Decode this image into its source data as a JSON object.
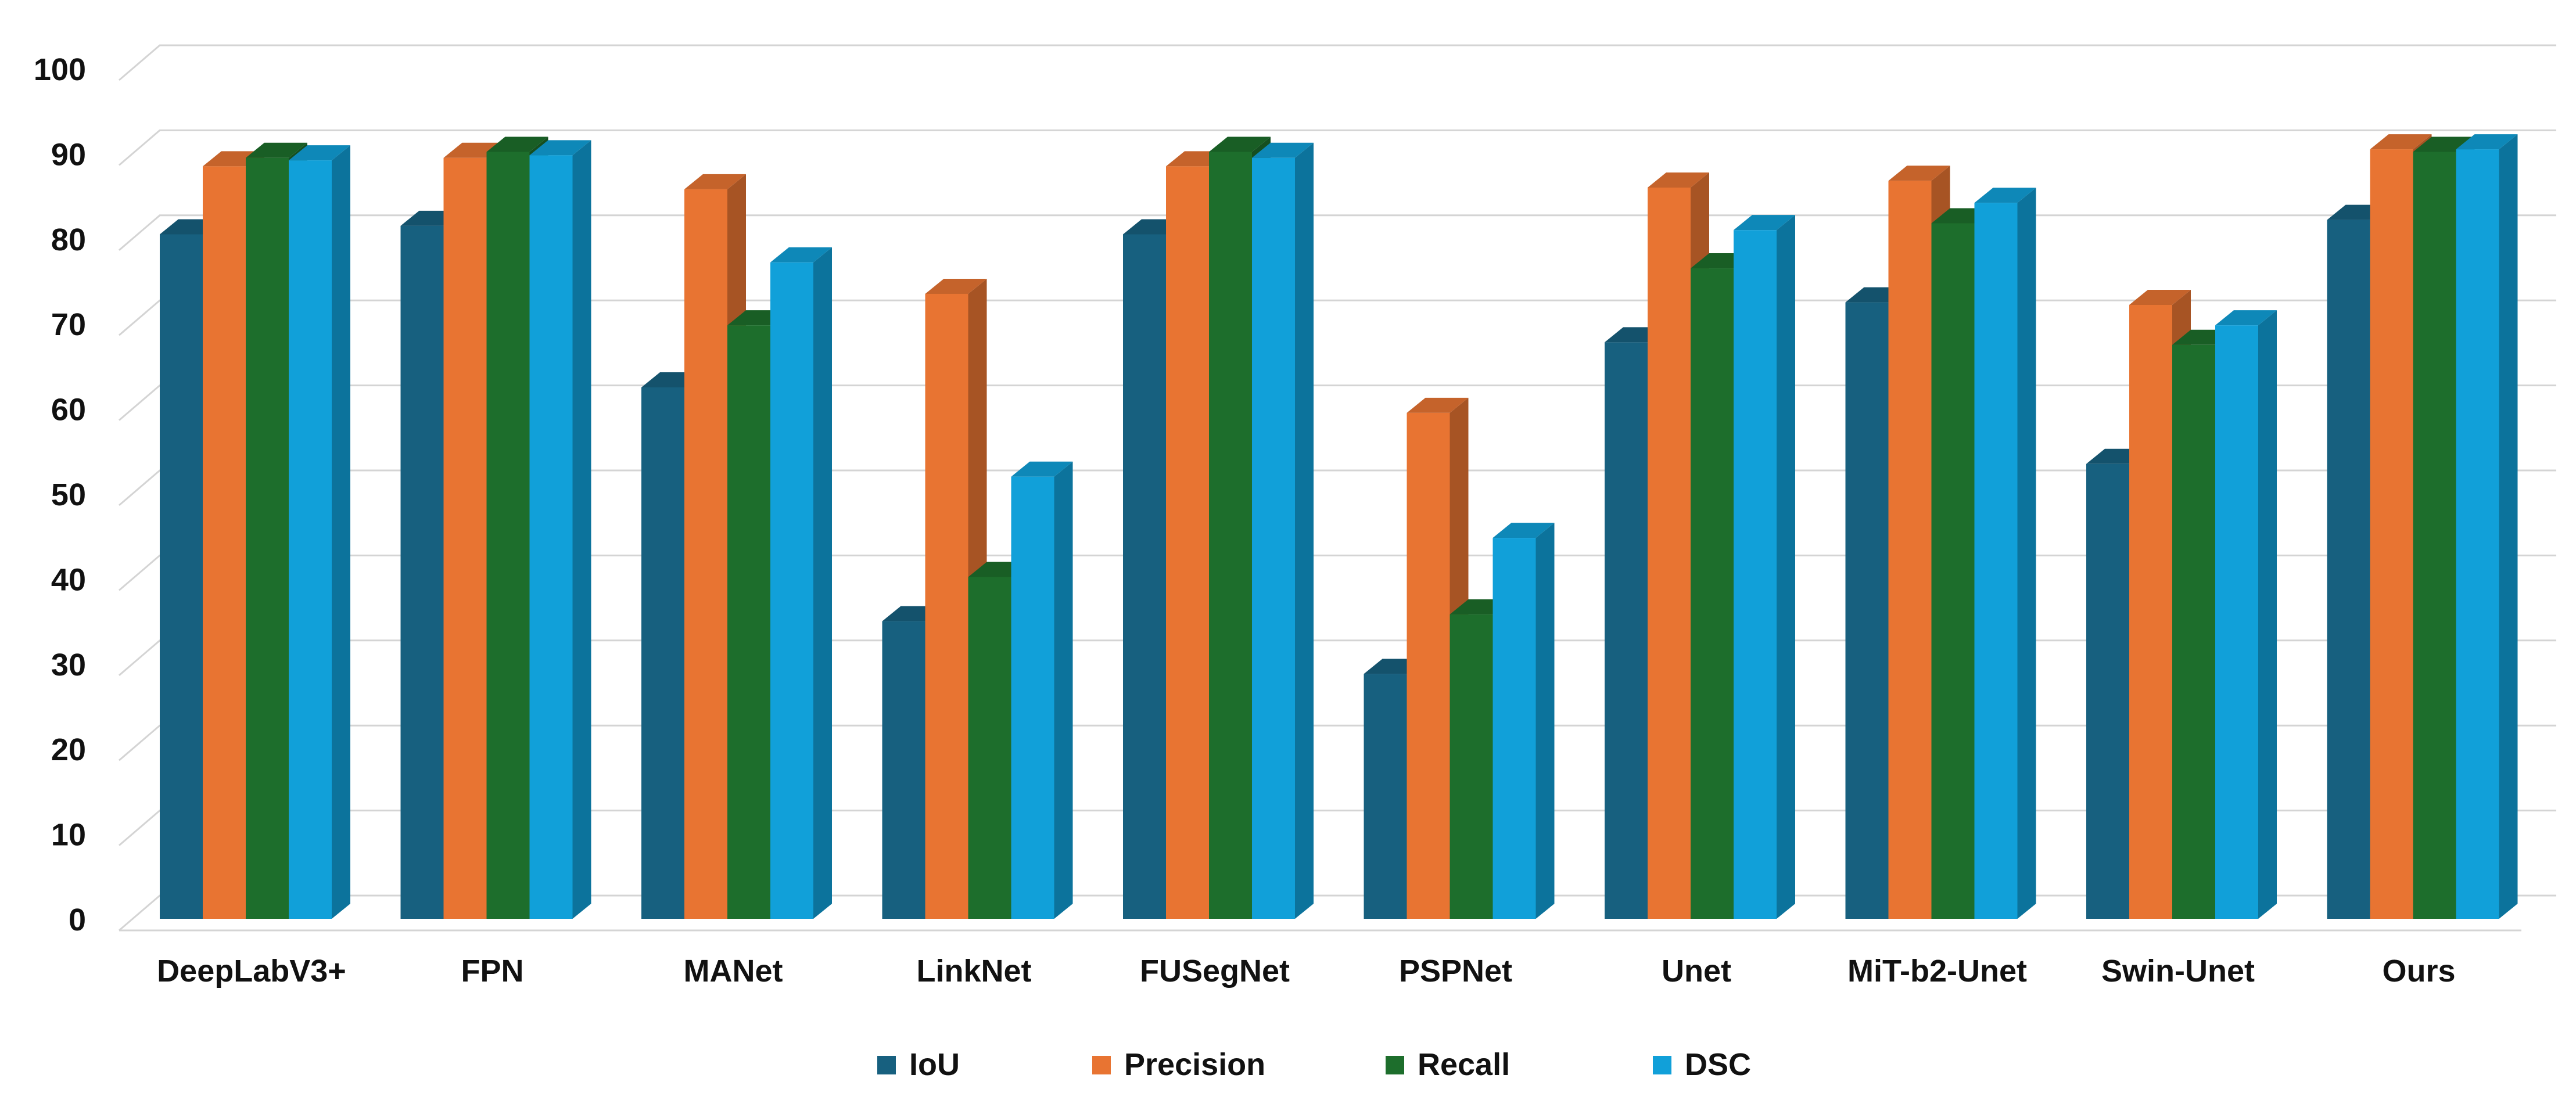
{
  "chart_data": {
    "type": "bar",
    "style": "3d-clustered-column",
    "title": "",
    "xlabel": "",
    "ylabel": "",
    "ylim": [
      0,
      100
    ],
    "yticks": [
      "0",
      "10",
      "20",
      "30",
      "40",
      "50",
      "60",
      "70",
      "80",
      "90",
      "100"
    ],
    "grid": true,
    "legend_position": "bottom",
    "categories": [
      "DeepLabV3+",
      "FPN",
      "MANet",
      "LinkNet",
      "FUSegNet",
      "PSPNet",
      "Unet",
      "MiT-b2-Unet",
      "Swin-Unet",
      "Ours"
    ],
    "series": [
      {
        "name": "IoU",
        "color": "#17607F",
        "values": [
          80.5,
          81.5,
          62.5,
          35,
          80.5,
          28.8,
          67.8,
          72.5,
          53.5,
          82.2
        ]
      },
      {
        "name": "Precision",
        "color": "#E87432",
        "values": [
          88.5,
          89.5,
          85.8,
          73.5,
          88.5,
          59.5,
          86,
          86.8,
          72.2,
          90.5
        ]
      },
      {
        "name": "Recall",
        "color": "#1D6E2C",
        "values": [
          89.5,
          90.2,
          69.8,
          40.2,
          90.2,
          35.8,
          76.5,
          81.8,
          67.5,
          90.2
        ]
      },
      {
        "name": "DSC",
        "color": "#11A0D9",
        "values": [
          89.2,
          89.8,
          77.2,
          52,
          89.5,
          44.8,
          81,
          84.2,
          69.8,
          90.5
        ]
      }
    ]
  }
}
